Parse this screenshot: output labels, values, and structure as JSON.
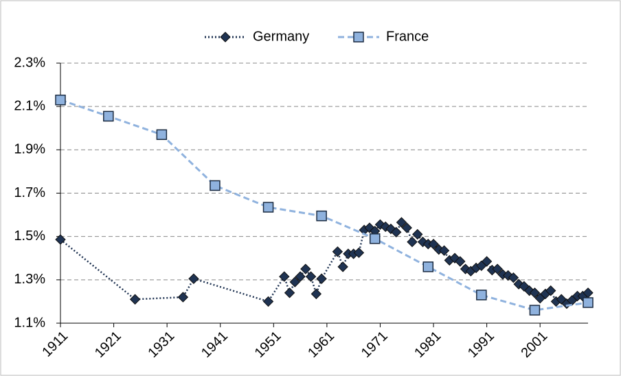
{
  "chart_data": {
    "type": "line",
    "series": [
      {
        "name": "Germany",
        "color": "#1f3352",
        "marker": "diamond",
        "line": "dotted",
        "x": [
          1911,
          1925,
          1934,
          1936,
          1950,
          1953,
          1954,
          1955,
          1956,
          1957,
          1958,
          1959,
          1960,
          1963,
          1964,
          1965,
          1966,
          1967,
          1968,
          1969,
          1970,
          1971,
          1972,
          1973,
          1974,
          1975,
          1976,
          1977,
          1978,
          1979,
          1980,
          1981,
          1982,
          1983,
          1984,
          1985,
          1986,
          1987,
          1988,
          1989,
          1990,
          1991,
          1992,
          1993,
          1994,
          1995,
          1996,
          1997,
          1998,
          1999,
          2000,
          2001,
          2002,
          2003,
          2004,
          2005,
          2006,
          2007,
          2008,
          2009,
          2010
        ],
        "values": [
          1.486,
          1.21,
          1.22,
          1.305,
          1.2,
          1.315,
          1.24,
          1.29,
          1.315,
          1.35,
          1.315,
          1.235,
          1.305,
          1.43,
          1.36,
          1.42,
          1.42,
          1.425,
          1.53,
          1.54,
          1.525,
          1.555,
          1.545,
          1.535,
          1.52,
          1.565,
          1.54,
          1.475,
          1.51,
          1.475,
          1.465,
          1.465,
          1.44,
          1.435,
          1.39,
          1.4,
          1.385,
          1.35,
          1.34,
          1.355,
          1.365,
          1.385,
          1.345,
          1.35,
          1.325,
          1.32,
          1.31,
          1.28,
          1.27,
          1.25,
          1.24,
          1.215,
          1.235,
          1.25,
          1.2,
          1.21,
          1.19,
          1.205,
          1.225,
          1.225,
          1.24
        ]
      },
      {
        "name": "France",
        "color": "#8fb2de",
        "marker": "square",
        "line": "dashed",
        "x": [
          1911,
          1920,
          1930,
          1940,
          1950,
          1960,
          1970,
          1980,
          1990,
          2000,
          2010
        ],
        "values": [
          2.13,
          2.055,
          1.97,
          1.735,
          1.635,
          1.595,
          1.49,
          1.36,
          1.23,
          1.16,
          1.195
        ]
      }
    ],
    "xlim": [
      1911,
      2010
    ],
    "xticks": [
      1911,
      1921,
      1931,
      1941,
      1951,
      1961,
      1971,
      1981,
      1991,
      2001
    ],
    "ylim": [
      1.1,
      2.3
    ],
    "yticks": [
      {
        "value": 1.1,
        "label": "1.1%"
      },
      {
        "value": 1.3,
        "label": "1.3%"
      },
      {
        "value": 1.5,
        "label": "1.5%"
      },
      {
        "value": 1.7,
        "label": "1.7%"
      },
      {
        "value": 1.9,
        "label": "1.9%"
      },
      {
        "value": 2.1,
        "label": "2.1%"
      },
      {
        "value": 2.3,
        "label": "2.3%"
      }
    ],
    "grid": true,
    "legend": "top"
  }
}
